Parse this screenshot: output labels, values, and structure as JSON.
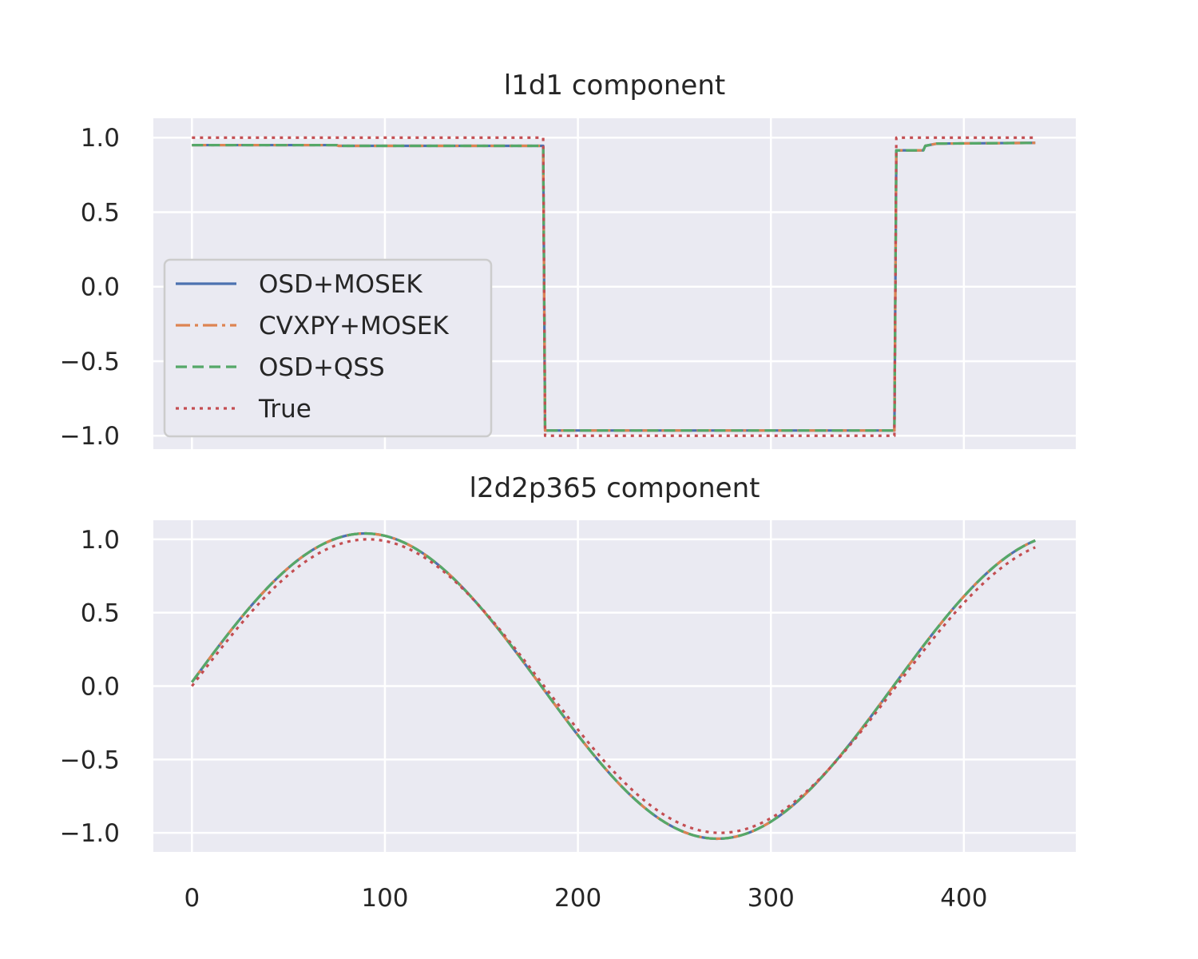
{
  "chart_data": [
    {
      "type": "line",
      "title": "l1d1 component",
      "xlabel": "",
      "ylabel": "",
      "xlim": [
        -20,
        458
      ],
      "ylim": [
        -1.09,
        1.13
      ],
      "xticks": [
        0,
        100,
        200,
        300,
        400
      ],
      "yticks": [
        1.0,
        0.5,
        0.0,
        -0.5,
        -1.0
      ],
      "ytick_labels": [
        "1.0",
        "0.5",
        "0.0",
        "−0.5",
        "−1.0"
      ],
      "grid": true,
      "legend_position": "center-left",
      "series": [
        {
          "name": "OSD+MOSEK",
          "color": "#4c72b0",
          "style": "solid",
          "points": [
            [
              0,
              0.95
            ],
            [
              75,
              0.95
            ],
            [
              76,
              0.945
            ],
            [
              182,
              0.945
            ],
            [
              183,
              -0.965
            ],
            [
              364,
              -0.965
            ],
            [
              365,
              0.915
            ],
            [
              379,
              0.915
            ],
            [
              380,
              0.945
            ],
            [
              386,
              0.96
            ],
            [
              437,
              0.965
            ]
          ]
        },
        {
          "name": "CVXPY+MOSEK",
          "color": "#dd8452",
          "style": "dashdot",
          "points": [
            [
              0,
              0.95
            ],
            [
              75,
              0.95
            ],
            [
              76,
              0.945
            ],
            [
              182,
              0.945
            ],
            [
              183,
              -0.965
            ],
            [
              364,
              -0.965
            ],
            [
              365,
              0.915
            ],
            [
              379,
              0.915
            ],
            [
              380,
              0.945
            ],
            [
              386,
              0.96
            ],
            [
              437,
              0.965
            ]
          ]
        },
        {
          "name": "OSD+QSS",
          "color": "#55a868",
          "style": "dashed",
          "points": [
            [
              0,
              0.95
            ],
            [
              75,
              0.95
            ],
            [
              76,
              0.945
            ],
            [
              182,
              0.945
            ],
            [
              183,
              -0.965
            ],
            [
              364,
              -0.965
            ],
            [
              365,
              0.915
            ],
            [
              379,
              0.915
            ],
            [
              380,
              0.945
            ],
            [
              386,
              0.96
            ],
            [
              437,
              0.965
            ]
          ]
        },
        {
          "name": "True",
          "color": "#c44e52",
          "style": "dotted",
          "points": [
            [
              0,
              1.0
            ],
            [
              182,
              1.0
            ],
            [
              183,
              -1.0
            ],
            [
              364,
              -1.0
            ],
            [
              365,
              1.0
            ],
            [
              437,
              1.0
            ]
          ]
        }
      ]
    },
    {
      "type": "line",
      "title": "l2d2p365 component",
      "xlabel": "",
      "ylabel": "",
      "xlim": [
        -20,
        458
      ],
      "ylim": [
        -1.13,
        1.13
      ],
      "xticks": [
        0,
        100,
        200,
        300,
        400
      ],
      "xtick_labels": [
        "0",
        "100",
        "200",
        "300",
        "400"
      ],
      "yticks": [
        1.0,
        0.5,
        0.0,
        -0.5,
        -1.0
      ],
      "ytick_labels": [
        "1.0",
        "0.5",
        "0.0",
        "−0.5",
        "−1.0"
      ],
      "grid": true,
      "series": [
        {
          "color": "#4c72b0",
          "style": "solid",
          "function": "sine",
          "amplitude": 1.04,
          "period": 365,
          "phase_shift": -1.5,
          "x_range": [
            0,
            437
          ]
        },
        {
          "color": "#dd8452",
          "style": "dashdot",
          "function": "sine",
          "amplitude": 1.04,
          "period": 365,
          "phase_shift": -1.5,
          "x_range": [
            0,
            437
          ]
        },
        {
          "color": "#55a868",
          "style": "dashed",
          "function": "sine",
          "amplitude": 1.04,
          "period": 365,
          "phase_shift": -1.5,
          "x_range": [
            0,
            437
          ]
        },
        {
          "color": "#c44e52",
          "style": "dotted",
          "function": "sine",
          "amplitude": 1.0,
          "period": 365,
          "phase_shift": 0,
          "x_range": [
            0,
            437
          ]
        }
      ]
    }
  ]
}
